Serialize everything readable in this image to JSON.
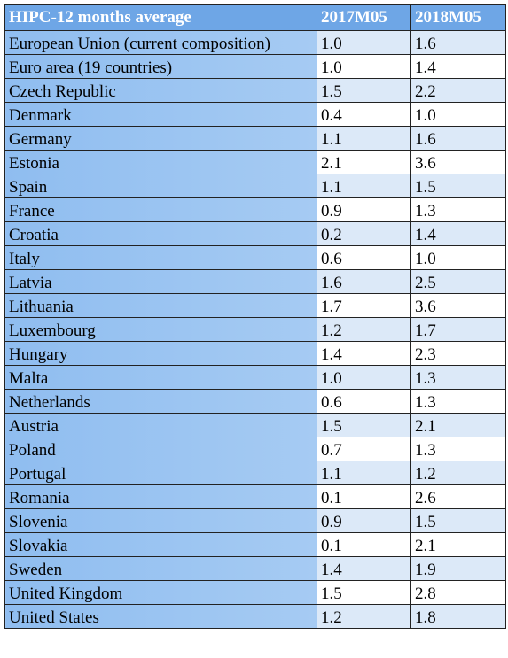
{
  "table": {
    "header": [
      "HIPC-12 months average",
      "2017M05",
      "2018M05"
    ],
    "rows": [
      [
        "European Union (current composition)",
        "1.0",
        "1.6"
      ],
      [
        "Euro area (19 countries)",
        "1.0",
        "1.4"
      ],
      [
        "Czech Republic",
        "1.5",
        "2.2"
      ],
      [
        "Denmark",
        "0.4",
        "1.0"
      ],
      [
        "Germany",
        "1.1",
        "1.6"
      ],
      [
        "Estonia",
        "2.1",
        "3.6"
      ],
      [
        "Spain",
        "1.1",
        "1.5"
      ],
      [
        "France",
        "0.9",
        "1.3"
      ],
      [
        "Croatia",
        "0.2",
        "1.4"
      ],
      [
        "Italy",
        "0.6",
        "1.0"
      ],
      [
        "Latvia",
        "1.6",
        "2.5"
      ],
      [
        "Lithuania",
        "1.7",
        "3.6"
      ],
      [
        "Luxembourg",
        "1.2",
        "1.7"
      ],
      [
        "Hungary",
        "1.4",
        "2.3"
      ],
      [
        "Malta",
        "1.0",
        "1.3"
      ],
      [
        "Netherlands",
        "0.6",
        "1.3"
      ],
      [
        "Austria",
        "1.5",
        "2.1"
      ],
      [
        "Poland",
        "0.7",
        "1.3"
      ],
      [
        "Portugal",
        "1.1",
        "1.2"
      ],
      [
        "Romania",
        "0.1",
        "2.6"
      ],
      [
        "Slovenia",
        "0.9",
        "1.5"
      ],
      [
        "Slovakia",
        "0.1",
        "2.1"
      ],
      [
        "Sweden",
        "1.4",
        "1.9"
      ],
      [
        "United Kingdom",
        "1.5",
        "2.8"
      ],
      [
        "United States",
        "1.2",
        "1.8"
      ]
    ]
  }
}
